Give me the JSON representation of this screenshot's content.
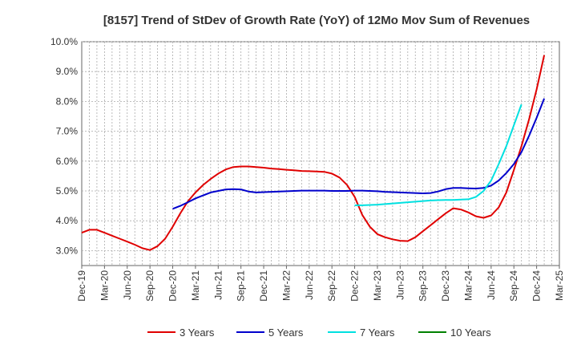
{
  "chart_data": {
    "type": "line",
    "title": "[8157]  Trend of StDev of Growth Rate (YoY) of 12Mo Mov Sum of Revenues",
    "xlabel": "",
    "ylabel": "",
    "ylim": [
      2.5,
      10.0
    ],
    "y_ticks": [
      3.0,
      4.0,
      5.0,
      6.0,
      7.0,
      8.0,
      9.0,
      10.0
    ],
    "y_tick_labels": [
      "3.0%",
      "4.0%",
      "5.0%",
      "6.0%",
      "7.0%",
      "8.0%",
      "9.0%",
      "10.0%"
    ],
    "x_tick_labels": [
      "Dec-19",
      "Mar-20",
      "Jun-20",
      "Sep-20",
      "Dec-20",
      "Mar-21",
      "Jun-21",
      "Sep-21",
      "Dec-21",
      "Mar-22",
      "Jun-22",
      "Sep-22",
      "Dec-22",
      "Mar-23",
      "Jun-23",
      "Sep-23",
      "Dec-23",
      "Mar-24",
      "Jun-24",
      "Sep-24",
      "Dec-24",
      "Mar-25"
    ],
    "x_range": [
      0,
      63
    ],
    "grid": true,
    "legend_position": "bottom",
    "series": [
      {
        "name": "3 Years",
        "color": "#e00000",
        "start_index": 0,
        "values": [
          3.6,
          3.7,
          3.7,
          3.6,
          3.5,
          3.4,
          3.3,
          3.2,
          3.08,
          3.02,
          3.15,
          3.4,
          3.8,
          4.25,
          4.65,
          4.95,
          5.2,
          5.4,
          5.58,
          5.72,
          5.8,
          5.82,
          5.82,
          5.8,
          5.78,
          5.75,
          5.73,
          5.71,
          5.69,
          5.67,
          5.66,
          5.65,
          5.64,
          5.58,
          5.45,
          5.2,
          4.8,
          4.2,
          3.8,
          3.55,
          3.45,
          3.38,
          3.33,
          3.32,
          3.45,
          3.65,
          3.85,
          4.05,
          4.25,
          4.42,
          4.38,
          4.28,
          4.15,
          4.1,
          4.18,
          4.45,
          4.95,
          5.7,
          6.5,
          7.4,
          8.4,
          9.55
        ]
      },
      {
        "name": "5 Years",
        "color": "#0000cc",
        "start_index": 12,
        "values": [
          4.4,
          4.5,
          4.62,
          4.75,
          4.85,
          4.95,
          5.0,
          5.05,
          5.06,
          5.05,
          4.98,
          4.95,
          4.96,
          4.97,
          4.98,
          4.99,
          5.0,
          5.01,
          5.01,
          5.01,
          5.01,
          5.0,
          5.0,
          5.0,
          5.01,
          5.01,
          5.0,
          4.99,
          4.97,
          4.96,
          4.95,
          4.94,
          4.93,
          4.92,
          4.93,
          4.98,
          5.06,
          5.1,
          5.1,
          5.09,
          5.08,
          5.1,
          5.18,
          5.35,
          5.6,
          5.9,
          6.3,
          6.85,
          7.45,
          8.1
        ]
      },
      {
        "name": "7 Years",
        "color": "#00e0e0",
        "start_index": 36,
        "values": [
          4.52,
          4.52,
          4.53,
          4.54,
          4.56,
          4.58,
          4.6,
          4.62,
          4.64,
          4.66,
          4.68,
          4.69,
          4.7,
          4.7,
          4.71,
          4.72,
          4.8,
          5.0,
          5.35,
          5.9,
          6.5,
          7.2,
          7.9
        ]
      },
      {
        "name": "10 Years",
        "color": "#008000",
        "start_index": 0,
        "values": []
      }
    ]
  }
}
